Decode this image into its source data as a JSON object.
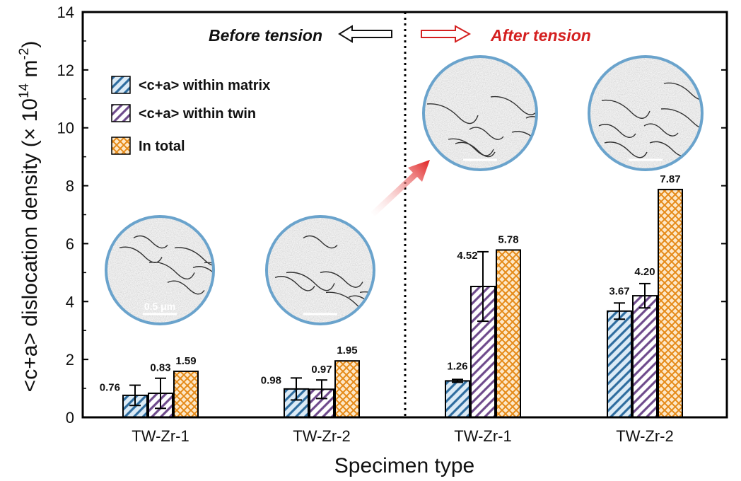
{
  "colors": {
    "matrix": "#2f6d9f",
    "matrix_bg": "#dcebf6",
    "twin": "#6f4b8c",
    "twin_bg": "#e9dff3",
    "total": "#e58a18",
    "total_bg": "#fde8c8",
    "after_title": "#d42020",
    "before_title": "#111111",
    "micrograph_ring": "#6aa3cc"
  },
  "annotations": {
    "before": "Before tension",
    "after": "After tension",
    "scale_bar": "0.5 μm"
  },
  "micrographs": [
    {
      "name": "before-tw-zr-1-micrograph",
      "group": 0
    },
    {
      "name": "before-tw-zr-2-micrograph",
      "group": 1
    },
    {
      "name": "after-tw-zr-1-micrograph",
      "group": 2
    },
    {
      "name": "after-tw-zr-2-micrograph",
      "group": 3
    }
  ],
  "chart_data": {
    "type": "bar",
    "title": "",
    "xlabel": "Specimen type",
    "ylabel_prefix": "<c+a>  dislocation density (× 10",
    "ylabel_exp1": "14",
    "ylabel_mid": " m",
    "ylabel_exp2": "-2",
    "ylabel_suffix": ")",
    "ylim": [
      0,
      14
    ],
    "yticks": [
      0,
      2,
      4,
      6,
      8,
      10,
      12,
      14
    ],
    "categories": [
      "TW-Zr-1",
      "TW-Zr-2",
      "TW-Zr-1",
      "TW-Zr-2"
    ],
    "groups": [
      "Before tension",
      "Before tension",
      "After tension",
      "After tension"
    ],
    "legend_position": "upper-left",
    "grid": false,
    "series": [
      {
        "name": "<c+a> within matrix",
        "values": [
          0.76,
          0.98,
          1.26,
          3.67
        ],
        "labels": [
          "0.76",
          "0.98",
          "1.26",
          "3.67"
        ],
        "error": [
          0.35,
          0.38,
          0.05,
          0.28
        ]
      },
      {
        "name": "<c+a> within twin",
        "values": [
          0.83,
          0.97,
          4.52,
          4.2
        ],
        "labels": [
          "0.83",
          "0.97",
          "4.52",
          "4.20"
        ],
        "error": [
          0.52,
          0.32,
          1.2,
          0.42
        ]
      },
      {
        "name": "In total",
        "values": [
          1.59,
          1.95,
          5.78,
          7.87
        ],
        "labels": [
          "1.59",
          "1.95",
          "5.78",
          "7.87"
        ],
        "error": [
          0,
          0,
          0,
          0
        ]
      }
    ]
  }
}
